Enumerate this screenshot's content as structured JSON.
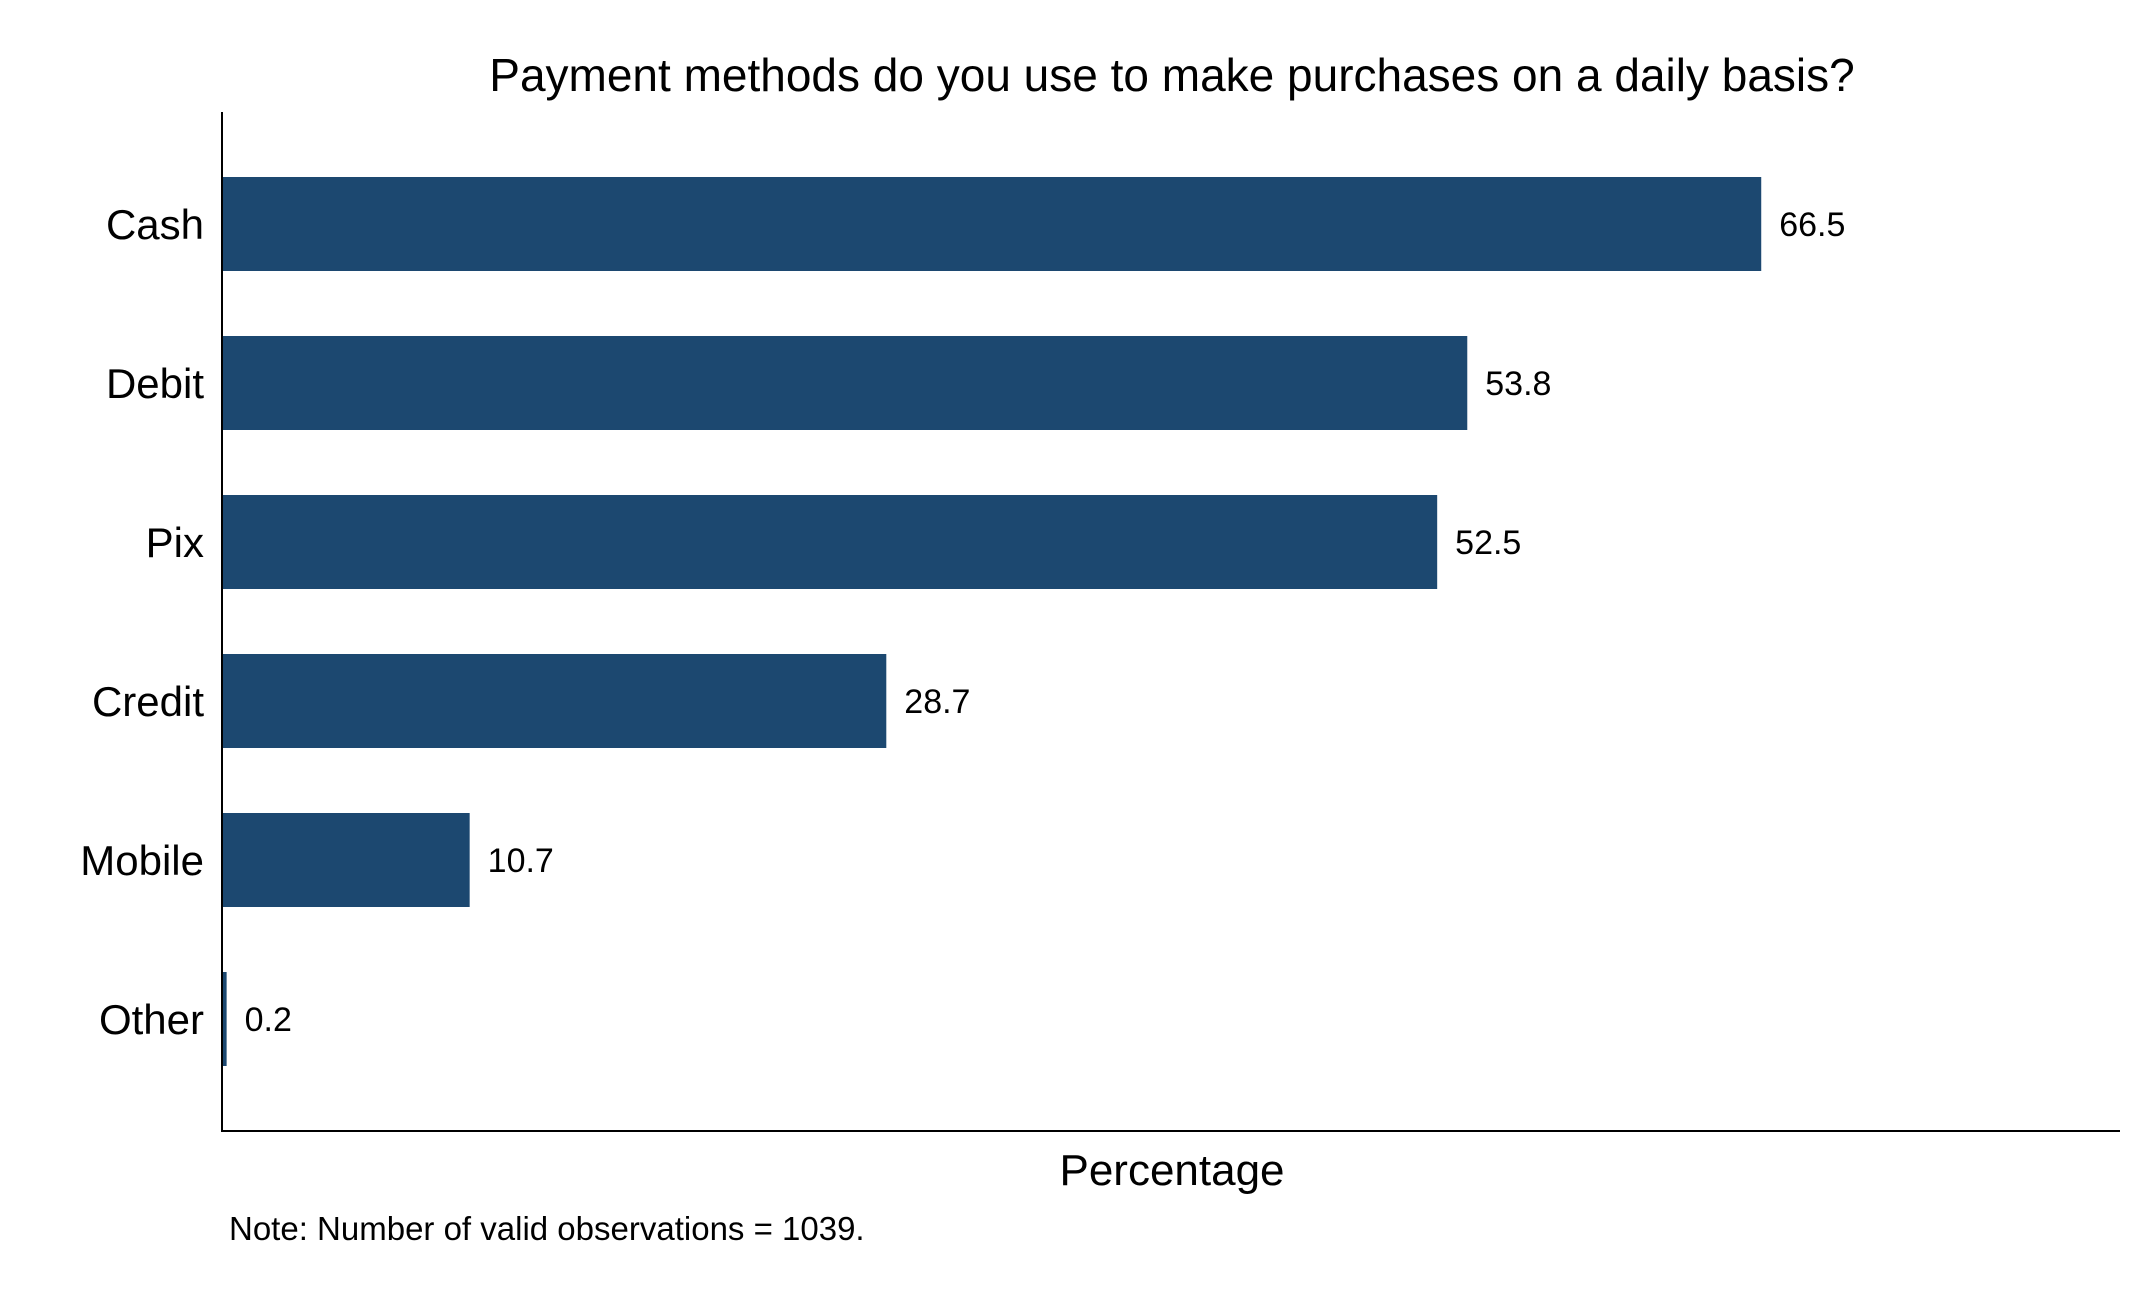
{
  "chart_data": {
    "type": "bar",
    "orientation": "horizontal",
    "title": "Payment methods do you use to make purchases on a daily basis?",
    "xlabel": "Percentage",
    "ylabel": "",
    "categories": [
      "Cash",
      "Debit",
      "Pix",
      "Credit",
      "Mobile",
      "Other"
    ],
    "values": [
      66.5,
      53.8,
      52.5,
      28.7,
      10.7,
      0.2
    ],
    "value_labels": [
      "66.5",
      "53.8",
      "52.5",
      "28.7",
      "10.7",
      "0.2"
    ],
    "xlim": [
      0,
      82
    ],
    "grid": false,
    "bar_color": "#1c4870",
    "note": "Note: Number of valid observations = 1039."
  }
}
